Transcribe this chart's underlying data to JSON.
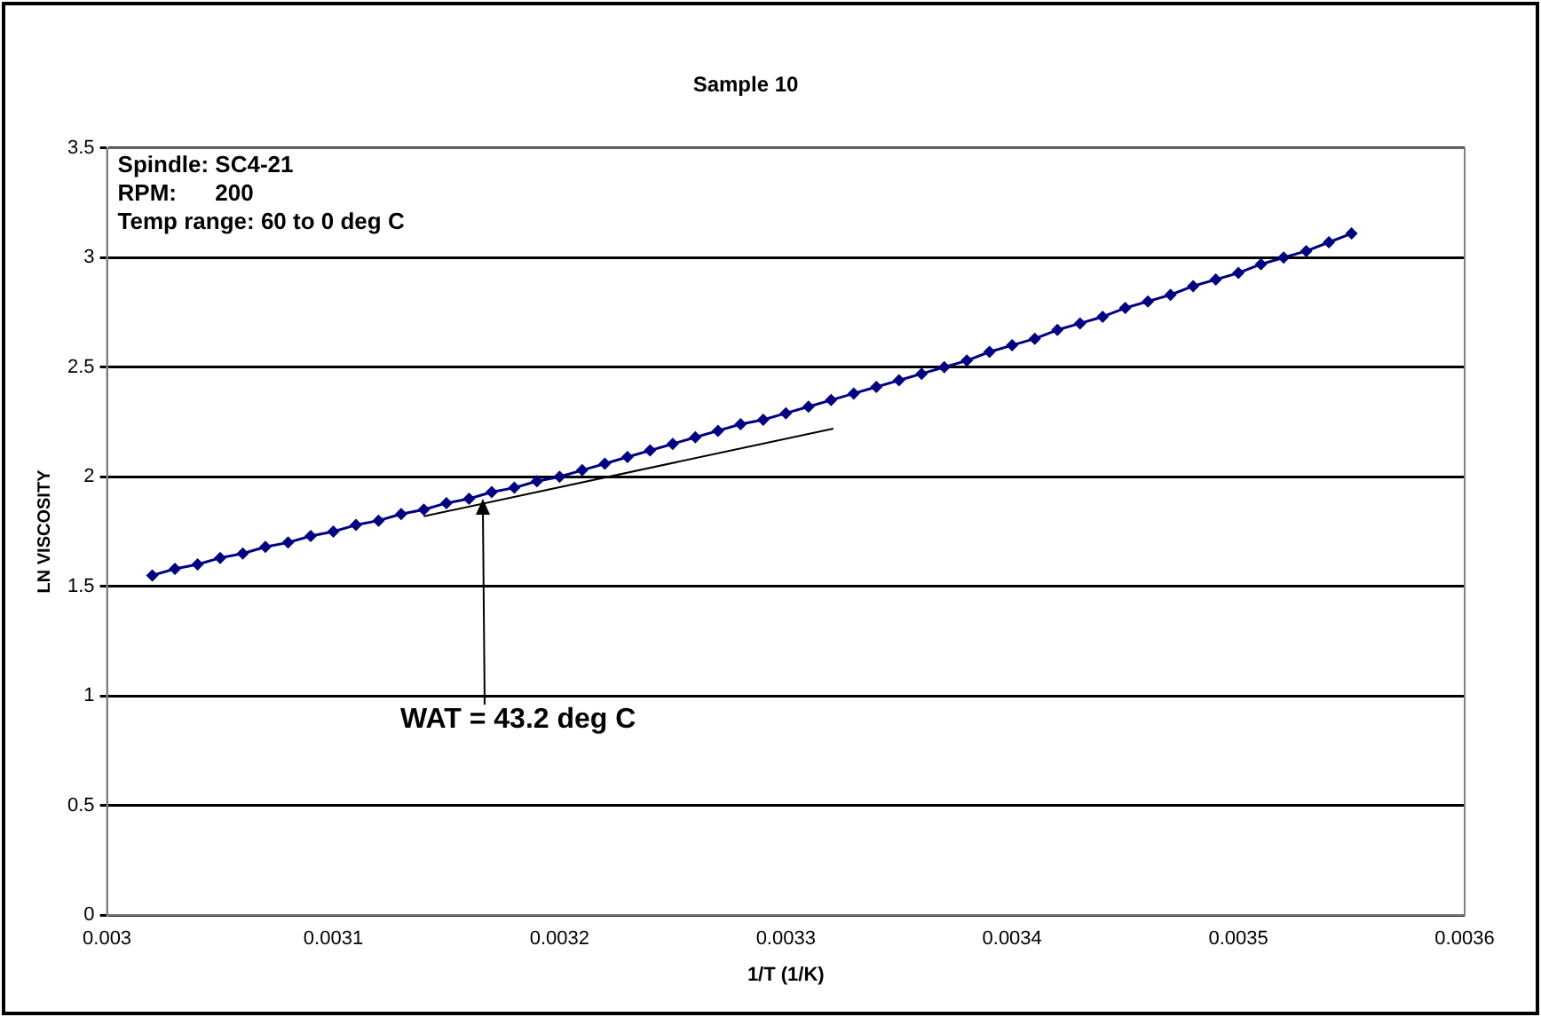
{
  "chart_data": {
    "type": "line",
    "title": "Sample 10",
    "xlabel": "1/T (1/K)",
    "ylabel": "LN VISCOSITY",
    "xlim": [
      0.003,
      0.0036
    ],
    "xticks": [
      0.003,
      0.0031,
      0.0032,
      0.0033,
      0.0034,
      0.0035,
      0.0036
    ],
    "ylim": [
      0,
      3.5
    ],
    "yticks": [
      0,
      0.5,
      1,
      1.5,
      2,
      2.5,
      3,
      3.5
    ],
    "grid": "y",
    "legend": false,
    "marker": "diamond",
    "line_style": "solid",
    "annotations": [
      "Spindle: SC4-21",
      "RPM:      200",
      "Temp range: 60 to 0 deg C",
      {
        "text": "WAT = 43.2 deg C",
        "x": 0.003166,
        "y": 1.91
      }
    ],
    "series": [
      {
        "color": "#000080",
        "x": [
          0.00302,
          0.00303,
          0.00304,
          0.00305,
          0.00306,
          0.00307,
          0.00308,
          0.00309,
          0.0031,
          0.00311,
          0.00312,
          0.00313,
          0.00314,
          0.00315,
          0.00316,
          0.00317,
          0.00318,
          0.00319,
          0.0032,
          0.00321,
          0.00322,
          0.00323,
          0.00324,
          0.00325,
          0.00326,
          0.00327,
          0.00328,
          0.00329,
          0.0033,
          0.00331,
          0.00332,
          0.00333,
          0.00334,
          0.00335,
          0.00336,
          0.00337,
          0.00338,
          0.00339,
          0.0034,
          0.00341,
          0.00342,
          0.00343,
          0.00344,
          0.00345,
          0.00346,
          0.00347,
          0.00348,
          0.00349,
          0.0035,
          0.00351,
          0.00352,
          0.00353,
          0.00354,
          0.00355
        ],
        "values": [
          1.55,
          1.58,
          1.6,
          1.63,
          1.65,
          1.68,
          1.7,
          1.73,
          1.75,
          1.78,
          1.8,
          1.83,
          1.85,
          1.88,
          1.9,
          1.93,
          1.95,
          1.98,
          2.0,
          2.03,
          2.06,
          2.09,
          2.12,
          2.15,
          2.18,
          2.21,
          2.24,
          2.26,
          2.29,
          2.32,
          2.35,
          2.38,
          2.41,
          2.44,
          2.47,
          2.5,
          2.53,
          2.57,
          2.6,
          2.63,
          2.67,
          2.7,
          2.73,
          2.77,
          2.8,
          2.83,
          2.87,
          2.9,
          2.93,
          2.97,
          3.0,
          3.03,
          3.07,
          3.11
        ]
      },
      {
        "type": "line",
        "color": "#000000",
        "marker": "none",
        "x": [
          0.00314,
          0.003321
        ],
        "values": [
          1.82,
          2.22
        ]
      }
    ]
  }
}
